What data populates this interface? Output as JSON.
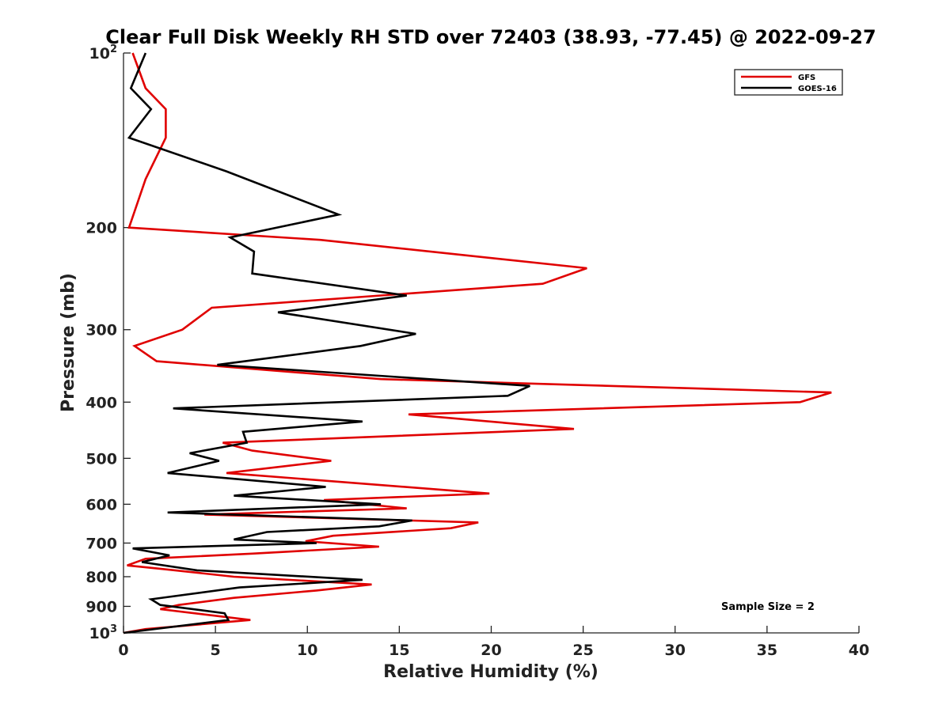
{
  "chart_data": {
    "type": "line",
    "title": "Clear Full Disk Weekly RH STD over 72403 (38.93, -77.45) @ 2022-09-27",
    "xlabel": "Relative Humidity (%)",
    "ylabel": "Pressure (mb)",
    "xlim": [
      0,
      40
    ],
    "ylim": [
      100,
      1000
    ],
    "y_scale": "log",
    "y_reversed": true,
    "x_ticks": [
      0,
      5,
      10,
      15,
      20,
      25,
      30,
      35,
      40
    ],
    "x_tick_labels": [
      "0",
      "5",
      "10",
      "15",
      "20",
      "25",
      "30",
      "35",
      "40"
    ],
    "y_ticks": [
      100,
      200,
      300,
      400,
      500,
      600,
      700,
      800,
      900,
      1000
    ],
    "y_tick_labels": [
      {
        "base": "10",
        "exp": "2"
      },
      {
        "base": "200",
        "exp": ""
      },
      {
        "base": "300",
        "exp": ""
      },
      {
        "base": "400",
        "exp": ""
      },
      {
        "base": "500",
        "exp": ""
      },
      {
        "base": "600",
        "exp": ""
      },
      {
        "base": "700",
        "exp": ""
      },
      {
        "base": "800",
        "exp": ""
      },
      {
        "base": "900",
        "exp": ""
      },
      {
        "base": "10",
        "exp": "3"
      }
    ],
    "grid": false,
    "legend_position": "top-right",
    "annotation": "Sample Size = 2",
    "series": [
      {
        "name": "GFS",
        "color": "#e00000",
        "points": [
          [
            0.5,
            100
          ],
          [
            1.2,
            115
          ],
          [
            2.3,
            125
          ],
          [
            2.3,
            140
          ],
          [
            1.2,
            165
          ],
          [
            0.3,
            200
          ],
          [
            10.7,
            210
          ],
          [
            25.2,
            235
          ],
          [
            22.8,
            250
          ],
          [
            4.8,
            275
          ],
          [
            3.2,
            300
          ],
          [
            0.6,
            320
          ],
          [
            1.8,
            340
          ],
          [
            14.0,
            365
          ],
          [
            38.5,
            385
          ],
          [
            36.8,
            400
          ],
          [
            15.5,
            420
          ],
          [
            24.5,
            445
          ],
          [
            5.4,
            470
          ],
          [
            7.0,
            485
          ],
          [
            11.3,
            505
          ],
          [
            5.6,
            530
          ],
          [
            19.9,
            575
          ],
          [
            10.9,
            590
          ],
          [
            15.4,
            610
          ],
          [
            4.4,
            625
          ],
          [
            19.3,
            645
          ],
          [
            17.8,
            660
          ],
          [
            11.4,
            680
          ],
          [
            9.9,
            695
          ],
          [
            13.9,
            710
          ],
          [
            7.0,
            730
          ],
          [
            1.2,
            745
          ],
          [
            0.2,
            765
          ],
          [
            2.0,
            775
          ],
          [
            6.0,
            800
          ],
          [
            13.5,
            825
          ],
          [
            10.5,
            845
          ],
          [
            6.0,
            870
          ],
          [
            3.0,
            895
          ],
          [
            2.0,
            910
          ],
          [
            6.9,
            950
          ],
          [
            1.2,
            985
          ],
          [
            0.0,
            1000
          ]
        ]
      },
      {
        "name": "GOES-16",
        "color": "#000000",
        "points": [
          [
            1.2,
            100
          ],
          [
            0.4,
            115
          ],
          [
            1.5,
            125
          ],
          [
            0.3,
            140
          ],
          [
            5.6,
            160
          ],
          [
            11.7,
            190
          ],
          [
            5.8,
            208
          ],
          [
            7.1,
            220
          ],
          [
            7.0,
            240
          ],
          [
            15.4,
            262
          ],
          [
            8.4,
            280
          ],
          [
            15.9,
            305
          ],
          [
            12.9,
            320
          ],
          [
            5.1,
            345
          ],
          [
            22.1,
            375
          ],
          [
            20.9,
            390
          ],
          [
            2.7,
            410
          ],
          [
            13.0,
            432
          ],
          [
            6.5,
            450
          ],
          [
            6.7,
            470
          ],
          [
            3.6,
            490
          ],
          [
            5.2,
            505
          ],
          [
            2.4,
            530
          ],
          [
            11.0,
            560
          ],
          [
            6.0,
            580
          ],
          [
            14.0,
            600
          ],
          [
            2.4,
            620
          ],
          [
            15.7,
            640
          ],
          [
            13.9,
            655
          ],
          [
            7.8,
            670
          ],
          [
            6.0,
            690
          ],
          [
            10.5,
            700
          ],
          [
            0.5,
            715
          ],
          [
            2.5,
            735
          ],
          [
            1.0,
            755
          ],
          [
            4.0,
            780
          ],
          [
            13.0,
            810
          ],
          [
            6.3,
            835
          ],
          [
            1.5,
            875
          ],
          [
            2.0,
            895
          ],
          [
            5.5,
            925
          ],
          [
            5.7,
            950
          ],
          [
            0.0,
            1000
          ]
        ]
      }
    ]
  }
}
